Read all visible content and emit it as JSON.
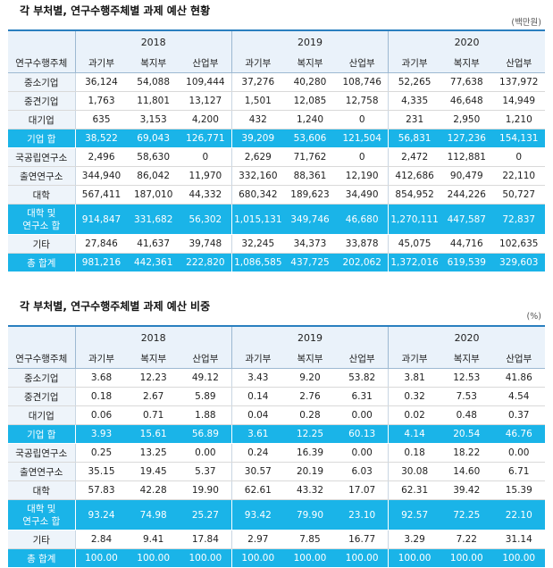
{
  "colors": {
    "accent": "#1ab4e8",
    "header_bg": "#eaf2fa",
    "top_rule": "#2a7fbf"
  },
  "table1": {
    "title": "각 부처별, 연구수행주체별 과제 예산 현황",
    "unit": "(백만원)",
    "corner_label": "연구수행주체",
    "years": [
      "2018",
      "2019",
      "2020"
    ],
    "ministries": [
      "과기부",
      "복지부",
      "산업부"
    ],
    "rows": [
      {
        "label": "중소기업",
        "values": [
          "36,124",
          "54,088",
          "109,444",
          "37,276",
          "40,280",
          "108,746",
          "52,265",
          "77,638",
          "137,972"
        ]
      },
      {
        "label": "중견기업",
        "values": [
          "1,763",
          "11,801",
          "13,127",
          "1,501",
          "12,085",
          "12,758",
          "4,335",
          "46,648",
          "14,949"
        ]
      },
      {
        "label": "대기업",
        "values": [
          "635",
          "3,153",
          "4,200",
          "432",
          "1,240",
          "0",
          "231",
          "2,950",
          "1,210"
        ]
      },
      {
        "label": "기업 합",
        "highlight": true,
        "values": [
          "38,522",
          "69,043",
          "126,771",
          "39,209",
          "53,606",
          "121,504",
          "56,831",
          "127,236",
          "154,131"
        ]
      },
      {
        "label": "국공립연구소",
        "values": [
          "2,496",
          "58,630",
          "0",
          "2,629",
          "71,762",
          "0",
          "2,472",
          "112,881",
          "0"
        ]
      },
      {
        "label": "출연연구소",
        "values": [
          "344,940",
          "86,042",
          "11,970",
          "332,160",
          "88,361",
          "12,190",
          "412,686",
          "90,479",
          "22,110"
        ]
      },
      {
        "label": "대학",
        "values": [
          "567,411",
          "187,010",
          "44,332",
          "680,342",
          "189,623",
          "34,490",
          "854,952",
          "244,226",
          "50,727"
        ]
      },
      {
        "label": "대학 및",
        "label2": "연구소 합",
        "highlight": true,
        "values": [
          "914,847",
          "331,682",
          "56,302",
          "1,015,131",
          "349,746",
          "46,680",
          "1,270,111",
          "447,587",
          "72,837"
        ]
      },
      {
        "label": "기타",
        "values": [
          "27,846",
          "41,637",
          "39,748",
          "32,245",
          "34,373",
          "33,878",
          "45,075",
          "44,716",
          "102,635"
        ]
      },
      {
        "label": "총 합계",
        "highlight": true,
        "values": [
          "981,216",
          "442,361",
          "222,820",
          "1,086,585",
          "437,725",
          "202,062",
          "1,372,016",
          "619,539",
          "329,603"
        ]
      }
    ]
  },
  "table2": {
    "title": "각 부처별, 연구수행주체별 과제 예산 비중",
    "unit": "(%)",
    "corner_label": "연구수행주체",
    "years": [
      "2018",
      "2019",
      "2020"
    ],
    "ministries": [
      "과기부",
      "복지부",
      "산업부"
    ],
    "rows": [
      {
        "label": "중소기업",
        "values": [
          "3.68",
          "12.23",
          "49.12",
          "3.43",
          "9.20",
          "53.82",
          "3.81",
          "12.53",
          "41.86"
        ]
      },
      {
        "label": "중견기업",
        "values": [
          "0.18",
          "2.67",
          "5.89",
          "0.14",
          "2.76",
          "6.31",
          "0.32",
          "7.53",
          "4.54"
        ]
      },
      {
        "label": "대기업",
        "values": [
          "0.06",
          "0.71",
          "1.88",
          "0.04",
          "0.28",
          "0.00",
          "0.02",
          "0.48",
          "0.37"
        ]
      },
      {
        "label": "기업 합",
        "highlight": true,
        "values": [
          "3.93",
          "15.61",
          "56.89",
          "3.61",
          "12.25",
          "60.13",
          "4.14",
          "20.54",
          "46.76"
        ]
      },
      {
        "label": "국공립연구소",
        "values": [
          "0.25",
          "13.25",
          "0.00",
          "0.24",
          "16.39",
          "0.00",
          "0.18",
          "18.22",
          "0.00"
        ]
      },
      {
        "label": "출연연구소",
        "values": [
          "35.15",
          "19.45",
          "5.37",
          "30.57",
          "20.19",
          "6.03",
          "30.08",
          "14.60",
          "6.71"
        ]
      },
      {
        "label": "대학",
        "values": [
          "57.83",
          "42.28",
          "19.90",
          "62.61",
          "43.32",
          "17.07",
          "62.31",
          "39.42",
          "15.39"
        ]
      },
      {
        "label": "대학 및",
        "label2": "연구소 합",
        "highlight": true,
        "values": [
          "93.24",
          "74.98",
          "25.27",
          "93.42",
          "79.90",
          "23.10",
          "92.57",
          "72.25",
          "22.10"
        ]
      },
      {
        "label": "기타",
        "values": [
          "2.84",
          "9.41",
          "17.84",
          "2.97",
          "7.85",
          "16.77",
          "3.29",
          "7.22",
          "31.14"
        ]
      },
      {
        "label": "총 합계",
        "highlight": true,
        "values": [
          "100.00",
          "100.00",
          "100.00",
          "100.00",
          "100.00",
          "100.00",
          "100.00",
          "100.00",
          "100.00"
        ]
      }
    ]
  }
}
